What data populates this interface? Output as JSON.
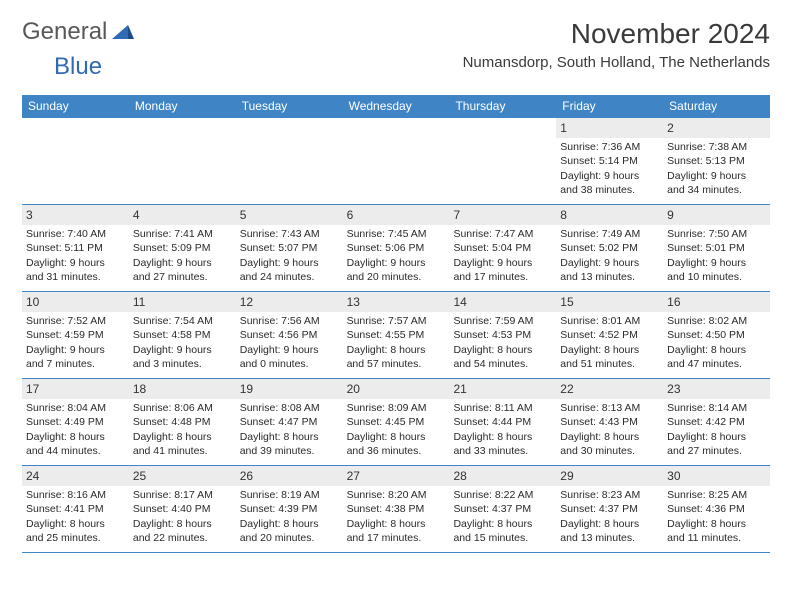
{
  "logo": {
    "general": "General",
    "blue": "Blue"
  },
  "title": "November 2024",
  "location": "Numansdorp, South Holland, The Netherlands",
  "header_bg": "#3f85c6",
  "daynum_bg": "#ececec",
  "border_color": "#3f85c6",
  "weekdays": [
    "Sunday",
    "Monday",
    "Tuesday",
    "Wednesday",
    "Thursday",
    "Friday",
    "Saturday"
  ],
  "weeks": [
    [
      null,
      null,
      null,
      null,
      null,
      {
        "n": "1",
        "sr": "Sunrise: 7:36 AM",
        "ss": "Sunset: 5:14 PM",
        "d1": "Daylight: 9 hours",
        "d2": "and 38 minutes."
      },
      {
        "n": "2",
        "sr": "Sunrise: 7:38 AM",
        "ss": "Sunset: 5:13 PM",
        "d1": "Daylight: 9 hours",
        "d2": "and 34 minutes."
      }
    ],
    [
      {
        "n": "3",
        "sr": "Sunrise: 7:40 AM",
        "ss": "Sunset: 5:11 PM",
        "d1": "Daylight: 9 hours",
        "d2": "and 31 minutes."
      },
      {
        "n": "4",
        "sr": "Sunrise: 7:41 AM",
        "ss": "Sunset: 5:09 PM",
        "d1": "Daylight: 9 hours",
        "d2": "and 27 minutes."
      },
      {
        "n": "5",
        "sr": "Sunrise: 7:43 AM",
        "ss": "Sunset: 5:07 PM",
        "d1": "Daylight: 9 hours",
        "d2": "and 24 minutes."
      },
      {
        "n": "6",
        "sr": "Sunrise: 7:45 AM",
        "ss": "Sunset: 5:06 PM",
        "d1": "Daylight: 9 hours",
        "d2": "and 20 minutes."
      },
      {
        "n": "7",
        "sr": "Sunrise: 7:47 AM",
        "ss": "Sunset: 5:04 PM",
        "d1": "Daylight: 9 hours",
        "d2": "and 17 minutes."
      },
      {
        "n": "8",
        "sr": "Sunrise: 7:49 AM",
        "ss": "Sunset: 5:02 PM",
        "d1": "Daylight: 9 hours",
        "d2": "and 13 minutes."
      },
      {
        "n": "9",
        "sr": "Sunrise: 7:50 AM",
        "ss": "Sunset: 5:01 PM",
        "d1": "Daylight: 9 hours",
        "d2": "and 10 minutes."
      }
    ],
    [
      {
        "n": "10",
        "sr": "Sunrise: 7:52 AM",
        "ss": "Sunset: 4:59 PM",
        "d1": "Daylight: 9 hours",
        "d2": "and 7 minutes."
      },
      {
        "n": "11",
        "sr": "Sunrise: 7:54 AM",
        "ss": "Sunset: 4:58 PM",
        "d1": "Daylight: 9 hours",
        "d2": "and 3 minutes."
      },
      {
        "n": "12",
        "sr": "Sunrise: 7:56 AM",
        "ss": "Sunset: 4:56 PM",
        "d1": "Daylight: 9 hours",
        "d2": "and 0 minutes."
      },
      {
        "n": "13",
        "sr": "Sunrise: 7:57 AM",
        "ss": "Sunset: 4:55 PM",
        "d1": "Daylight: 8 hours",
        "d2": "and 57 minutes."
      },
      {
        "n": "14",
        "sr": "Sunrise: 7:59 AM",
        "ss": "Sunset: 4:53 PM",
        "d1": "Daylight: 8 hours",
        "d2": "and 54 minutes."
      },
      {
        "n": "15",
        "sr": "Sunrise: 8:01 AM",
        "ss": "Sunset: 4:52 PM",
        "d1": "Daylight: 8 hours",
        "d2": "and 51 minutes."
      },
      {
        "n": "16",
        "sr": "Sunrise: 8:02 AM",
        "ss": "Sunset: 4:50 PM",
        "d1": "Daylight: 8 hours",
        "d2": "and 47 minutes."
      }
    ],
    [
      {
        "n": "17",
        "sr": "Sunrise: 8:04 AM",
        "ss": "Sunset: 4:49 PM",
        "d1": "Daylight: 8 hours",
        "d2": "and 44 minutes."
      },
      {
        "n": "18",
        "sr": "Sunrise: 8:06 AM",
        "ss": "Sunset: 4:48 PM",
        "d1": "Daylight: 8 hours",
        "d2": "and 41 minutes."
      },
      {
        "n": "19",
        "sr": "Sunrise: 8:08 AM",
        "ss": "Sunset: 4:47 PM",
        "d1": "Daylight: 8 hours",
        "d2": "and 39 minutes."
      },
      {
        "n": "20",
        "sr": "Sunrise: 8:09 AM",
        "ss": "Sunset: 4:45 PM",
        "d1": "Daylight: 8 hours",
        "d2": "and 36 minutes."
      },
      {
        "n": "21",
        "sr": "Sunrise: 8:11 AM",
        "ss": "Sunset: 4:44 PM",
        "d1": "Daylight: 8 hours",
        "d2": "and 33 minutes."
      },
      {
        "n": "22",
        "sr": "Sunrise: 8:13 AM",
        "ss": "Sunset: 4:43 PM",
        "d1": "Daylight: 8 hours",
        "d2": "and 30 minutes."
      },
      {
        "n": "23",
        "sr": "Sunrise: 8:14 AM",
        "ss": "Sunset: 4:42 PM",
        "d1": "Daylight: 8 hours",
        "d2": "and 27 minutes."
      }
    ],
    [
      {
        "n": "24",
        "sr": "Sunrise: 8:16 AM",
        "ss": "Sunset: 4:41 PM",
        "d1": "Daylight: 8 hours",
        "d2": "and 25 minutes."
      },
      {
        "n": "25",
        "sr": "Sunrise: 8:17 AM",
        "ss": "Sunset: 4:40 PM",
        "d1": "Daylight: 8 hours",
        "d2": "and 22 minutes."
      },
      {
        "n": "26",
        "sr": "Sunrise: 8:19 AM",
        "ss": "Sunset: 4:39 PM",
        "d1": "Daylight: 8 hours",
        "d2": "and 20 minutes."
      },
      {
        "n": "27",
        "sr": "Sunrise: 8:20 AM",
        "ss": "Sunset: 4:38 PM",
        "d1": "Daylight: 8 hours",
        "d2": "and 17 minutes."
      },
      {
        "n": "28",
        "sr": "Sunrise: 8:22 AM",
        "ss": "Sunset: 4:37 PM",
        "d1": "Daylight: 8 hours",
        "d2": "and 15 minutes."
      },
      {
        "n": "29",
        "sr": "Sunrise: 8:23 AM",
        "ss": "Sunset: 4:37 PM",
        "d1": "Daylight: 8 hours",
        "d2": "and 13 minutes."
      },
      {
        "n": "30",
        "sr": "Sunrise: 8:25 AM",
        "ss": "Sunset: 4:36 PM",
        "d1": "Daylight: 8 hours",
        "d2": "and 11 minutes."
      }
    ]
  ]
}
